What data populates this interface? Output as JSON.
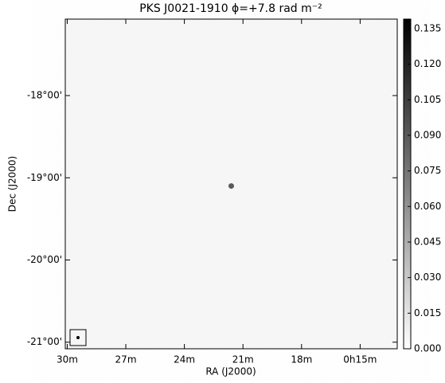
{
  "chart_data": {
    "type": "image",
    "title": "PKS J0021-1910 ϕ=+7.8 rad m⁻²",
    "xlabel": "RA (J2000)",
    "ylabel": "Dec (J2000)",
    "xlim": [
      30.1,
      13.1
    ],
    "xticks": [
      {
        "value": 30,
        "label": "30m"
      },
      {
        "value": 27,
        "label": "27m"
      },
      {
        "value": 24,
        "label": "24m"
      },
      {
        "value": 21,
        "label": "21m"
      },
      {
        "value": 18,
        "label": "18m"
      },
      {
        "value": 15,
        "label": "0h15m"
      }
    ],
    "ylim": [
      -21.08,
      -17.07
    ],
    "yticks": [
      {
        "value": -18,
        "label": "-18°00'"
      },
      {
        "value": -19,
        "label": "-19°00'"
      },
      {
        "value": -20,
        "label": "-20°00'"
      },
      {
        "value": -21,
        "label": "-21°00'"
      }
    ],
    "clim": [
      0,
      0.139
    ],
    "cticks": [
      {
        "value": 0,
        "label": "0.000"
      },
      {
        "value": 0.015,
        "label": "0.015"
      },
      {
        "value": 0.03,
        "label": "0.030"
      },
      {
        "value": 0.045,
        "label": "0.045"
      },
      {
        "value": 0.06,
        "label": "0.060"
      },
      {
        "value": 0.075,
        "label": "0.075"
      },
      {
        "value": 0.09,
        "label": "0.090"
      },
      {
        "value": 0.105,
        "label": "0.105"
      },
      {
        "value": 0.12,
        "label": "0.120"
      },
      {
        "value": 0.135,
        "label": "0.135"
      }
    ],
    "source": {
      "ra": 21.6,
      "dec": -19.1,
      "peak": 0.09
    },
    "colormap": "gray_r"
  }
}
